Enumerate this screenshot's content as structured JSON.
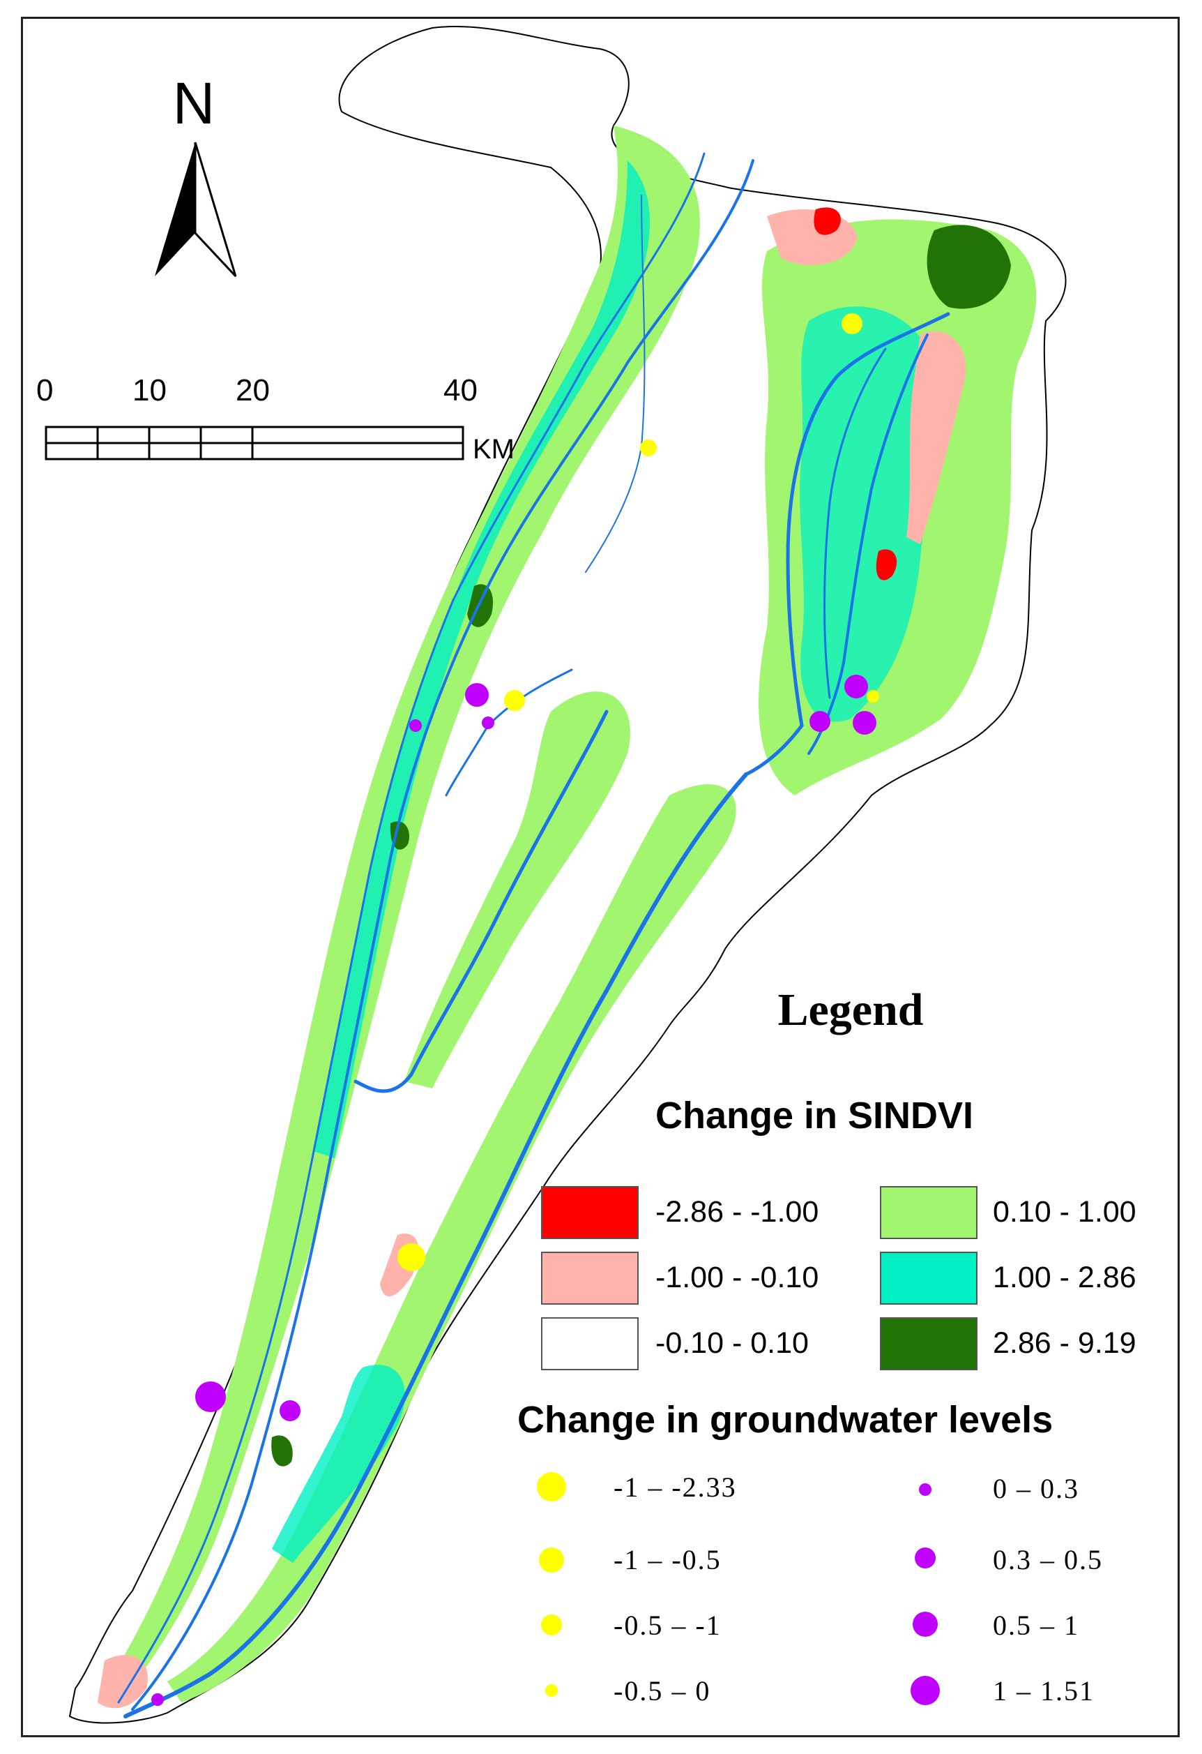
{
  "north_arrow": {
    "label": "N",
    "icon": "north-arrow-icon"
  },
  "scale_bar": {
    "ticks": [
      "0",
      "10",
      "20",
      "40"
    ],
    "unit": "KM"
  },
  "legend": {
    "title": "Legend",
    "sindvi": {
      "title": "Change in SINDVI",
      "classes": [
        {
          "label": "-2.86 - -1.00",
          "color": "#ff0000"
        },
        {
          "label": "-1.00 - -0.10",
          "color": "#ffb3ab"
        },
        {
          "label": "-0.10 - 0.10",
          "color": "#ffffff"
        },
        {
          "label": "0.10 - 1.00",
          "color": "#a2f56e"
        },
        {
          "label": "1.00 - 2.86",
          "color": "#00f0c4"
        },
        {
          "label": "2.86 - 9.19",
          "color": "#217306"
        }
      ]
    },
    "groundwater": {
      "title": "Change in groundwater levels",
      "classes": [
        {
          "label": "-1 – -2.33",
          "color": "#ffff00"
        },
        {
          "label": "-1 – -0.5",
          "color": "#ffff00"
        },
        {
          "label": "-0.5 – -1",
          "color": "#ffff00"
        },
        {
          "label": "-0.5 – 0",
          "color": "#ffff00"
        },
        {
          "label": "0 – 0.3",
          "color": "#bf00ff"
        },
        {
          "label": "0.3 – 0.5",
          "color": "#bf00ff"
        },
        {
          "label": "0.5 – 1",
          "color": "#bf00ff"
        },
        {
          "label": "1 – 1.51",
          "color": "#bf00ff"
        }
      ]
    }
  },
  "colors": {
    "river": "#1a73e8",
    "boundary": "#000000"
  }
}
